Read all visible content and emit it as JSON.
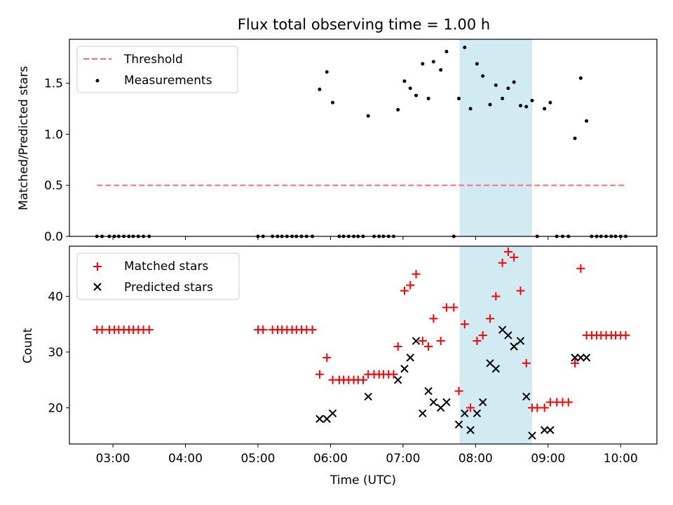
{
  "chart_data": [
    {
      "type": "scatter",
      "panel": "top",
      "title": "Flux total observing time = 1.00 h",
      "xlabel": "",
      "ylabel": "Matched/Predicted stars",
      "x_unit": "hours UTC",
      "xlim": [
        2.4,
        10.5
      ],
      "ylim": [
        0,
        1.93
      ],
      "yticks": [
        0.0,
        0.5,
        1.0,
        1.5
      ],
      "ytick_labels": [
        "0.0",
        "0.5",
        "1.0",
        "1.5"
      ],
      "legend": {
        "placement": "top-left",
        "entries": [
          "Threshold",
          "Measurements"
        ]
      },
      "highlight_span": {
        "x0": 7.78,
        "x1": 8.78,
        "color": "#add8e6"
      },
      "threshold": {
        "name": "Threshold",
        "value": 0.5,
        "x0": 2.78,
        "x1": 10.05,
        "color": "#ff7070",
        "style": "dashed"
      },
      "series": [
        {
          "name": "Measurements",
          "color": "#000000",
          "marker": "dot",
          "x": [
            2.78,
            2.85,
            2.95,
            3.02,
            3.08,
            3.15,
            3.22,
            3.28,
            3.35,
            3.42,
            3.5,
            5.0,
            5.07,
            5.2,
            5.27,
            5.33,
            5.4,
            5.47,
            5.53,
            5.6,
            5.67,
            5.75,
            5.85,
            5.95,
            6.03,
            6.12,
            6.18,
            6.25,
            6.32,
            6.38,
            6.45,
            6.52,
            6.6,
            6.67,
            6.73,
            6.8,
            6.87,
            6.93,
            7.02,
            7.1,
            7.18,
            7.27,
            7.35,
            7.42,
            7.52,
            7.6,
            7.7,
            7.77,
            7.85,
            7.93,
            8.02,
            8.1,
            8.2,
            8.28,
            8.37,
            8.45,
            8.53,
            8.62,
            8.7,
            8.78,
            8.85,
            8.95,
            9.03,
            9.12,
            9.2,
            9.28,
            9.37,
            9.45,
            9.53,
            9.6,
            9.67,
            9.73,
            9.8,
            9.87,
            9.93,
            10.0,
            10.07
          ],
          "y": [
            0,
            0,
            0,
            0,
            0,
            0,
            0,
            0,
            0,
            0,
            0,
            0,
            0,
            0,
            0,
            0,
            0,
            0,
            0,
            0,
            0,
            0,
            1.44,
            1.61,
            1.31,
            0,
            0,
            0,
            0,
            0,
            0,
            1.18,
            0,
            0,
            0,
            0,
            0,
            1.24,
            1.52,
            1.45,
            1.38,
            1.69,
            1.35,
            1.71,
            1.63,
            1.81,
            0,
            1.35,
            1.85,
            1.25,
            1.69,
            1.57,
            1.29,
            1.48,
            1.35,
            1.45,
            1.51,
            1.28,
            1.27,
            1.33,
            0,
            1.25,
            1.31,
            0,
            0,
            0,
            0.96,
            1.55,
            1.13,
            0,
            0,
            0,
            0,
            0,
            0,
            0,
            0
          ]
        }
      ]
    },
    {
      "type": "scatter",
      "panel": "bottom",
      "title": "",
      "xlabel": "Time (UTC)",
      "ylabel": "Count",
      "x_unit": "hours UTC",
      "xlim": [
        2.4,
        10.5
      ],
      "ylim": [
        13.5,
        49
      ],
      "yticks": [
        20,
        30,
        40
      ],
      "ytick_labels": [
        "20",
        "30",
        "40"
      ],
      "xticks": [
        3,
        4,
        5,
        6,
        7,
        8,
        9,
        10
      ],
      "xtick_labels": [
        "03:00",
        "04:00",
        "05:00",
        "06:00",
        "07:00",
        "08:00",
        "09:00",
        "10:00"
      ],
      "legend": {
        "placement": "top-left",
        "entries": [
          "Matched stars",
          "Predicted stars"
        ]
      },
      "highlight_span": {
        "x0": 7.78,
        "x1": 8.78,
        "color": "#add8e6"
      },
      "series": [
        {
          "name": "Matched stars",
          "color": "#ff0000",
          "marker": "plus",
          "x": [
            2.78,
            2.85,
            2.95,
            3.02,
            3.08,
            3.15,
            3.22,
            3.28,
            3.35,
            3.42,
            3.5,
            5.0,
            5.07,
            5.2,
            5.27,
            5.33,
            5.4,
            5.47,
            5.53,
            5.6,
            5.67,
            5.75,
            5.85,
            5.95,
            6.03,
            6.12,
            6.18,
            6.25,
            6.32,
            6.38,
            6.45,
            6.52,
            6.6,
            6.67,
            6.73,
            6.8,
            6.87,
            6.93,
            7.02,
            7.1,
            7.18,
            7.27,
            7.35,
            7.42,
            7.52,
            7.6,
            7.7,
            7.77,
            7.85,
            7.93,
            8.02,
            8.1,
            8.2,
            8.28,
            8.37,
            8.45,
            8.53,
            8.62,
            8.7,
            8.78,
            8.85,
            8.95,
            9.03,
            9.12,
            9.2,
            9.28,
            9.37,
            9.45,
            9.53,
            9.6,
            9.67,
            9.73,
            9.8,
            9.87,
            9.93,
            10.0,
            10.07
          ],
          "y": [
            34,
            34,
            34,
            34,
            34,
            34,
            34,
            34,
            34,
            34,
            34,
            34,
            34,
            34,
            34,
            34,
            34,
            34,
            34,
            34,
            34,
            34,
            26,
            29,
            25,
            25,
            25,
            25,
            25,
            25,
            25,
            26,
            26,
            26,
            26,
            26,
            26,
            31,
            41,
            42,
            44,
            32,
            31,
            36,
            32,
            38,
            38,
            23,
            35,
            20,
            32,
            33,
            36,
            40,
            46,
            48,
            47,
            41,
            28,
            20,
            20,
            20,
            21,
            21,
            21,
            21,
            28,
            45,
            33,
            33,
            33,
            33,
            33,
            33,
            33,
            33,
            33
          ]
        },
        {
          "name": "Predicted stars",
          "color": "#000000",
          "marker": "x",
          "x": [
            5.85,
            5.95,
            6.03,
            6.52,
            6.93,
            7.02,
            7.1,
            7.18,
            7.27,
            7.35,
            7.42,
            7.52,
            7.6,
            7.77,
            7.85,
            7.93,
            8.02,
            8.1,
            8.2,
            8.28,
            8.37,
            8.45,
            8.53,
            8.62,
            8.7,
            8.78,
            8.95,
            9.03,
            9.37,
            9.45,
            9.53
          ],
          "y": [
            18,
            18,
            19,
            22,
            25,
            27,
            29,
            32,
            19,
            23,
            21,
            20,
            21,
            17,
            19,
            16,
            19,
            21,
            28,
            27,
            34,
            33,
            31,
            32,
            22,
            15,
            16,
            16,
            29,
            29,
            29
          ]
        }
      ]
    }
  ]
}
